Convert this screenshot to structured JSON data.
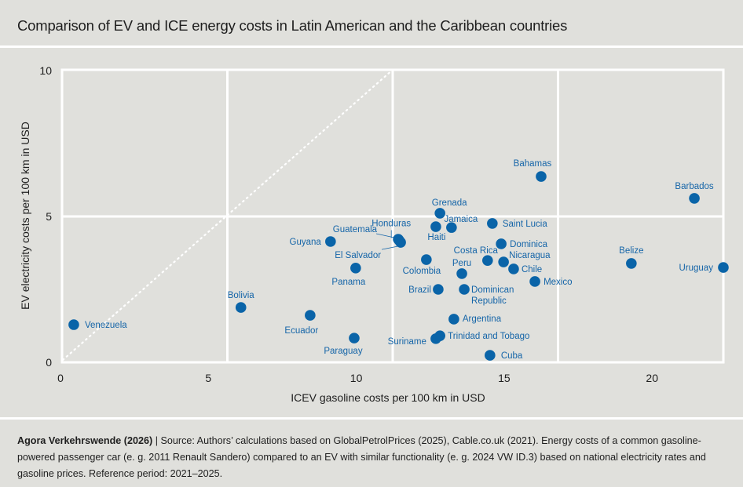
{
  "header": {
    "title": "Comparison of EV and ICE energy costs in Latin American and the Caribbean countries"
  },
  "footer": {
    "source_bold": "Agora Verkehrswende (2026)",
    "source_text": " | Source: Authors’ calculations based on GlobalPetrolPrices (2025), Cable.co.uk (2021). Energy costs of a common gasoline-powered passenger car (e. g. 2011 Renault Sandero) compared to an EV with similar functionality (e. g. 2024 VW ID.3) based on national electricity rates and gasoline prices. Reference period: 2021–2025."
  },
  "colors": {
    "background": "#e0e0dc",
    "grid": "#ffffff",
    "point": "#0a64a8",
    "label": "#1565a8"
  },
  "chart_data": {
    "type": "scatter",
    "title": "Comparison of EV and ICE energy costs in Latin American and the Caribbean countries",
    "xlabel": "ICEV gasoline costs per 100 km in USD",
    "ylabel": "EV electricity costs per 100 km in USD",
    "xlim": [
      0,
      22.4
    ],
    "ylim": [
      0,
      10
    ],
    "xticks": [
      0,
      5,
      10,
      15,
      20
    ],
    "yticks": [
      0,
      5,
      10
    ],
    "grid": true,
    "reference_line": {
      "style": "dotted",
      "from": [
        0,
        0
      ],
      "to": [
        11.2,
        10
      ]
    },
    "points": [
      {
        "name": "Venezuela",
        "x": 0.45,
        "y": 1.29
      },
      {
        "name": "Bolivia",
        "x": 6.1,
        "y": 1.88
      },
      {
        "name": "Ecuador",
        "x": 8.44,
        "y": 1.61
      },
      {
        "name": "Paraguay",
        "x": 9.93,
        "y": 0.83
      },
      {
        "name": "Panama",
        "x": 9.98,
        "y": 3.23
      },
      {
        "name": "Guyana",
        "x": 9.13,
        "y": 4.14
      },
      {
        "name": "Guatemala",
        "x": 11.42,
        "y": 4.22
      },
      {
        "name": "Honduras",
        "x": 11.45,
        "y": 4.18
      },
      {
        "name": "El Salvador",
        "x": 11.5,
        "y": 4.11
      },
      {
        "name": "Colombia",
        "x": 12.37,
        "y": 3.52
      },
      {
        "name": "Brazil",
        "x": 12.77,
        "y": 2.5
      },
      {
        "name": "Grenada",
        "x": 12.83,
        "y": 5.11
      },
      {
        "name": "Haiti",
        "x": 12.69,
        "y": 4.65
      },
      {
        "name": "Jamaica",
        "x": 13.22,
        "y": 4.62
      },
      {
        "name": "Peru",
        "x": 13.57,
        "y": 3.04
      },
      {
        "name": "Dominican Republic",
        "x": 13.65,
        "y": 2.5
      },
      {
        "name": "Saint Lucia",
        "x": 14.6,
        "y": 4.76
      },
      {
        "name": "Costa Rica",
        "x": 14.44,
        "y": 3.49
      },
      {
        "name": "Dominica",
        "x": 14.9,
        "y": 4.06
      },
      {
        "name": "Nicaragua",
        "x": 14.98,
        "y": 3.44
      },
      {
        "name": "Chile",
        "x": 15.32,
        "y": 3.2
      },
      {
        "name": "Mexico",
        "x": 16.04,
        "y": 2.77
      },
      {
        "name": "Bahamas",
        "x": 16.25,
        "y": 6.37
      },
      {
        "name": "Argentina",
        "x": 13.3,
        "y": 1.48
      },
      {
        "name": "Suriname",
        "x": 12.69,
        "y": 0.81
      },
      {
        "name": "Trinidad and Tobago",
        "x": 12.83,
        "y": 0.91
      },
      {
        "name": "Cuba",
        "x": 14.52,
        "y": 0.24
      },
      {
        "name": "Belize",
        "x": 19.3,
        "y": 3.39
      },
      {
        "name": "Barbados",
        "x": 21.43,
        "y": 5.62
      },
      {
        "name": "Uruguay",
        "x": 22.41,
        "y": 3.25
      }
    ]
  }
}
